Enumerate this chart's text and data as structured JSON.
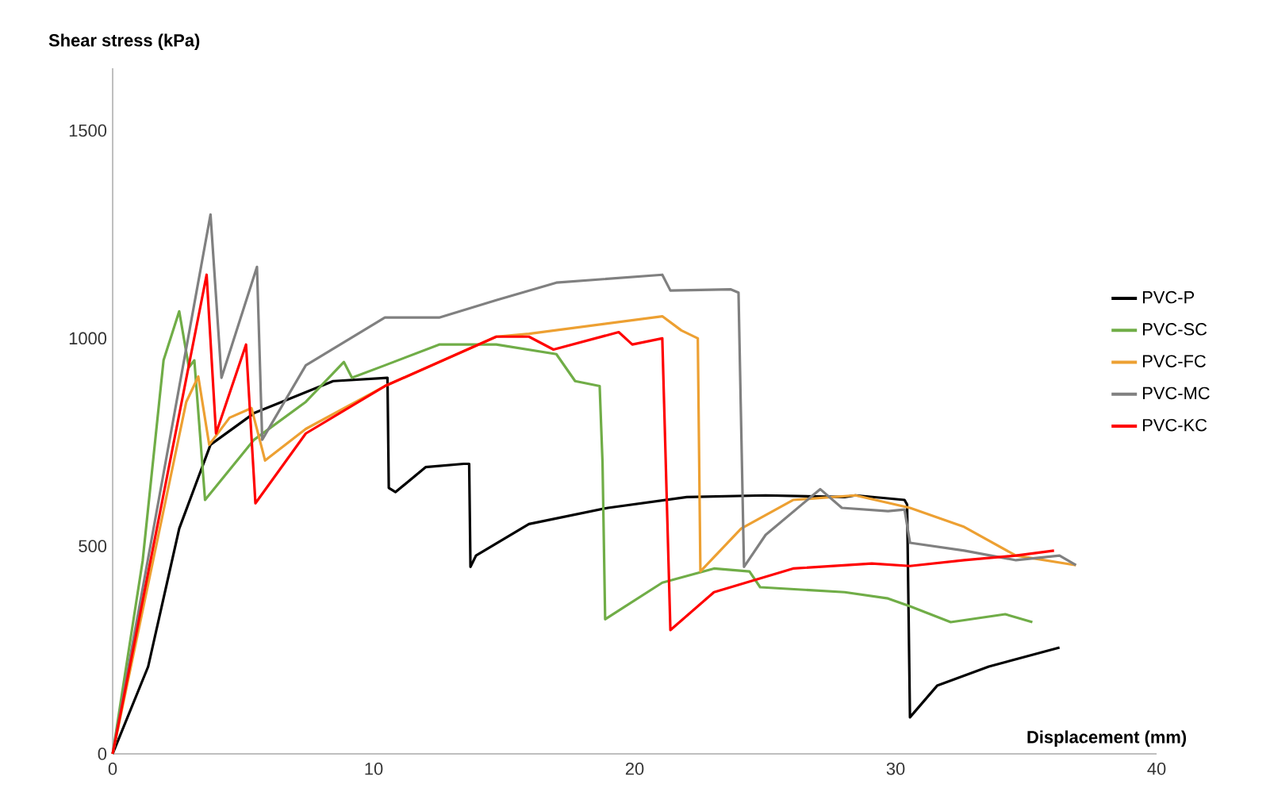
{
  "chart_data": {
    "type": "line",
    "xlabel": "Displacement (mm)",
    "ylabel": "Shear stress (kPa)",
    "xlim": [
      0,
      40
    ],
    "ylim": [
      0,
      1650
    ],
    "xticks": [
      0,
      10,
      20,
      30,
      40
    ],
    "yticks": [
      0,
      500,
      1000,
      1500
    ],
    "grid": false,
    "legend": "right",
    "marker": "none",
    "line_style": "solid",
    "series": [
      {
        "name": "PVC-P",
        "color": "#000000",
        "x": [
          0,
          1.36,
          2.55,
          3.75,
          5.42,
          8.45,
          10.53,
          10.58,
          10.84,
          11.99,
          13.45,
          13.66,
          13.71,
          13.92,
          15.95,
          18.98,
          22.0,
          25.02,
          28.05,
          28.46,
          30.34,
          30.44,
          30.55,
          31.59,
          33.57,
          36.28
        ],
        "values": [
          0,
          210,
          542,
          744,
          820,
          897,
          905,
          640,
          630,
          690,
          698,
          698,
          450,
          477,
          553,
          592,
          618,
          622,
          618,
          622,
          611,
          600,
          88,
          164,
          210,
          256
        ]
      },
      {
        "name": "PVC-SC",
        "color": "#70ad47",
        "x": [
          0,
          1.15,
          1.95,
          2.55,
          2.92,
          3.13,
          3.54,
          5.42,
          7.4,
          8.86,
          9.17,
          10.43,
          12.51,
          14.7,
          17.0,
          17.72,
          18.66,
          18.77,
          18.87,
          21.06,
          23.04,
          24.4,
          24.81,
          28.05,
          29.71,
          30.55,
          32.11,
          34.2,
          35.24
        ],
        "values": [
          0,
          465,
          947,
          1065,
          930,
          947,
          611,
          756,
          847,
          943,
          905,
          935,
          985,
          985,
          962,
          897,
          885,
          700,
          324,
          412,
          446,
          439,
          401,
          389,
          374,
          355,
          317,
          336,
          317
        ]
      },
      {
        "name": "PVC-FC",
        "color": "#eda032",
        "x": [
          0,
          2.82,
          3.28,
          3.7,
          4.48,
          5.32,
          5.84,
          7.4,
          10.43,
          14.7,
          15.95,
          21.06,
          21.79,
          22.42,
          22.52,
          24.08,
          26.07,
          28.46,
          30.55,
          32.63,
          34.61,
          36.91
        ],
        "values": [
          0,
          847,
          908,
          744,
          809,
          832,
          706,
          782,
          885,
          1004,
          1011,
          1053,
          1019,
          1000,
          439,
          542,
          611,
          622,
          592,
          546,
          477,
          454
        ]
      },
      {
        "name": "PVC-MC",
        "color": "#808080",
        "x": [
          0,
          3.75,
          4.17,
          5.53,
          5.73,
          7.4,
          10.43,
          12.51,
          14.7,
          17.0,
          21.06,
          21.37,
          23.67,
          23.98,
          24.19,
          25.02,
          27.11,
          27.94,
          29.71,
          30.34,
          30.55,
          32.63,
          34.61,
          36.28,
          36.91
        ],
        "values": [
          0,
          1298,
          905,
          1172,
          756,
          935,
          1050,
          1050,
          1092,
          1134,
          1153,
          1115,
          1118,
          1110,
          450,
          527,
          637,
          592,
          584,
          588,
          508,
          489,
          466,
          477,
          454
        ]
      },
      {
        "name": "PVC-KC",
        "color": "#ff0000",
        "x": [
          0,
          3.6,
          3.96,
          5.11,
          5.47,
          7.4,
          10.43,
          14.7,
          15.95,
          16.89,
          19.39,
          19.91,
          21.06,
          21.37,
          23.04,
          26.07,
          29.09,
          30.55,
          32.63,
          34.61,
          36.07
        ],
        "values": [
          0,
          1153,
          771,
          985,
          603,
          771,
          885,
          1004,
          1004,
          973,
          1015,
          985,
          1000,
          298,
          389,
          446,
          458,
          452,
          466,
          477,
          489
        ]
      }
    ]
  }
}
